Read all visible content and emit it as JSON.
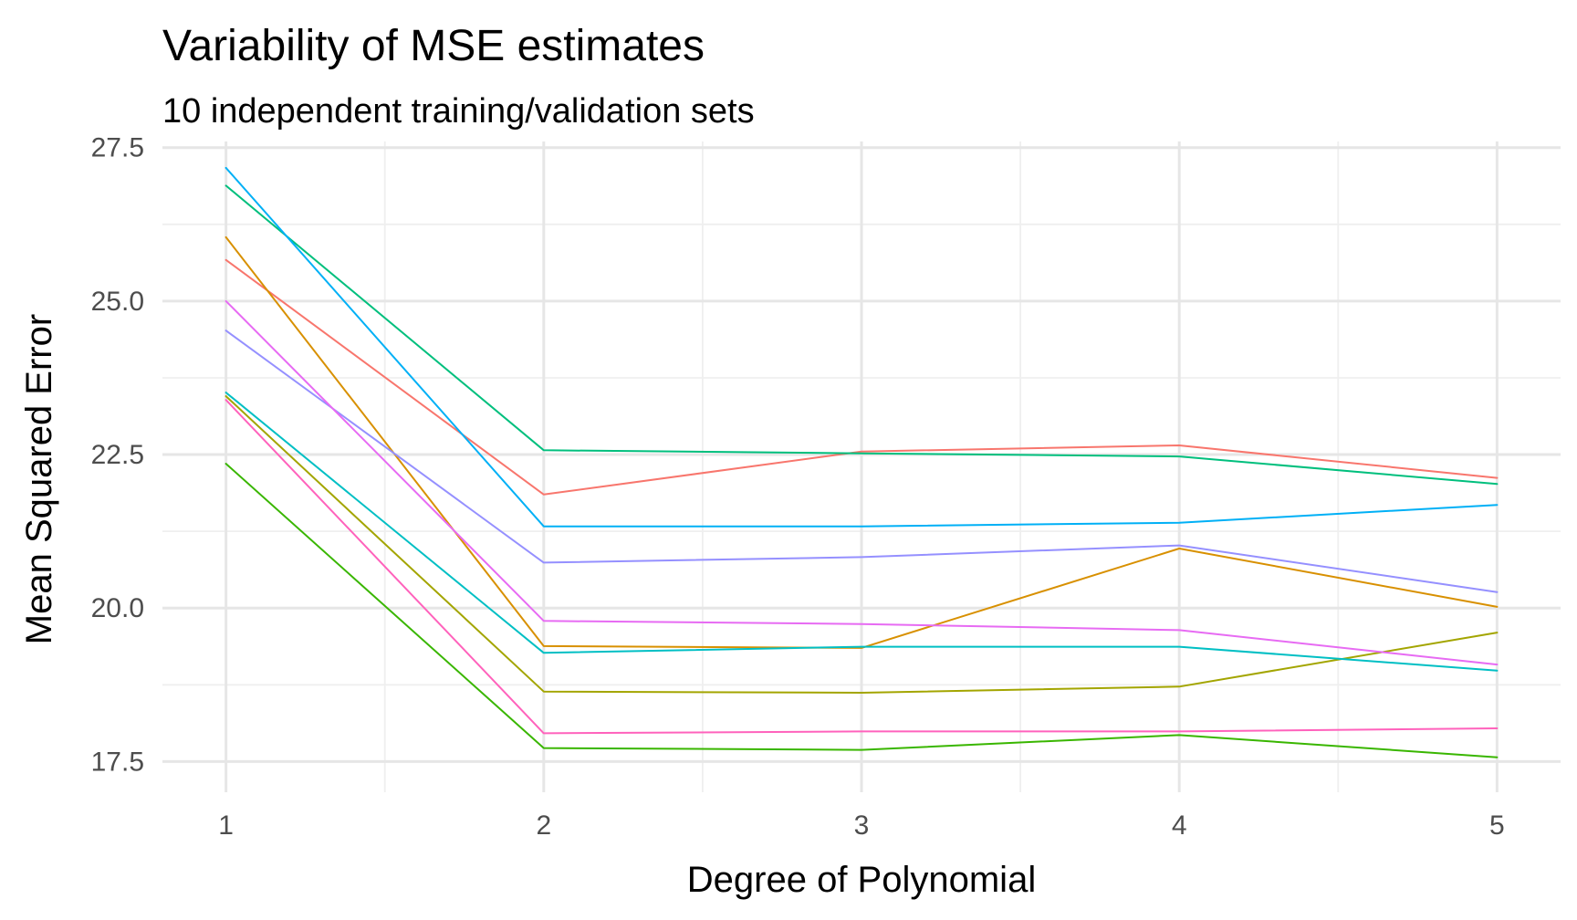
{
  "chart_data": {
    "type": "line",
    "title": "Variability of MSE estimates",
    "subtitle": "10 independent training/validation sets",
    "xlabel": "Degree of Polynomial",
    "ylabel": "Mean Squared Error",
    "x": [
      1,
      2,
      3,
      4,
      5
    ],
    "x_ticks": [
      1,
      2,
      3,
      4,
      5
    ],
    "x_tick_labels": [
      "1",
      "2",
      "3",
      "4",
      "5"
    ],
    "y_ticks": [
      17.5,
      20.0,
      22.5,
      25.0,
      27.5
    ],
    "y_tick_labels": [
      "17.5",
      "20.0",
      "22.5",
      "25.0",
      "27.5"
    ],
    "xlim": [
      0.8,
      5.2
    ],
    "ylim": [
      17.0,
      27.6
    ],
    "grid": true,
    "legend": "none",
    "series": [
      {
        "color": "#F8766D",
        "values": [
          25.67,
          21.85,
          22.55,
          22.65,
          22.12
        ]
      },
      {
        "color": "#D89000",
        "values": [
          26.04,
          19.38,
          19.35,
          20.97,
          20.02
        ]
      },
      {
        "color": "#A3A500",
        "values": [
          23.45,
          18.64,
          18.62,
          18.72,
          19.6
        ]
      },
      {
        "color": "#39B600",
        "values": [
          22.35,
          17.72,
          17.69,
          17.93,
          17.57
        ]
      },
      {
        "color": "#00BF7D",
        "values": [
          26.88,
          22.57,
          22.52,
          22.47,
          22.02
        ]
      },
      {
        "color": "#00BFC4",
        "values": [
          23.51,
          19.27,
          19.37,
          19.37,
          18.98
        ]
      },
      {
        "color": "#00B0F6",
        "values": [
          27.17,
          21.33,
          21.33,
          21.39,
          21.68
        ]
      },
      {
        "color": "#9590FF",
        "values": [
          24.52,
          20.74,
          20.83,
          21.02,
          20.26
        ]
      },
      {
        "color": "#E76BF3",
        "values": [
          25.0,
          19.79,
          19.74,
          19.64,
          19.08
        ]
      },
      {
        "color": "#FF62BC",
        "values": [
          23.39,
          17.96,
          17.99,
          17.99,
          18.04
        ]
      }
    ]
  }
}
